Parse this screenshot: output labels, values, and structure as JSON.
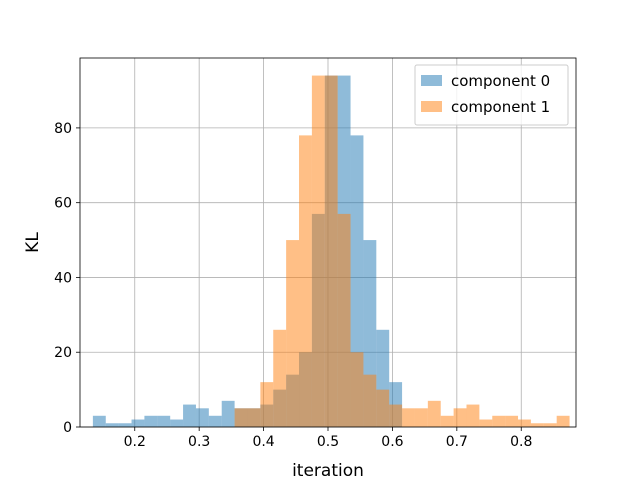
{
  "chart_data": {
    "type": "histogram",
    "xlabel": "iteration",
    "ylabel": "KL",
    "xlim": [
      0.115,
      0.885
    ],
    "ylim": [
      0,
      98.7
    ],
    "xticks": [
      0.2,
      0.3,
      0.4,
      0.5,
      0.6,
      0.7,
      0.8
    ],
    "yticks": [
      0,
      20,
      40,
      60,
      80
    ],
    "grid": true,
    "legend_position": "upper right",
    "alpha": 0.5,
    "series": [
      {
        "name": "component 0",
        "color": "#1f77b4",
        "bin_start": 0.135,
        "bin_width": 0.02,
        "counts": [
          3,
          1,
          1,
          2,
          3,
          3,
          2,
          6,
          5,
          3,
          7,
          5,
          5,
          6,
          10,
          14,
          20,
          57,
          94,
          94,
          78,
          50,
          26,
          12
        ]
      },
      {
        "name": "component 1",
        "color": "#ff7f0e",
        "bin_start": 0.355,
        "bin_width": 0.02,
        "counts": [
          5,
          5,
          12,
          26,
          50,
          78,
          94,
          94,
          57,
          20,
          14,
          10,
          6,
          5,
          5,
          7,
          3,
          5,
          6,
          2,
          3,
          3,
          2,
          1,
          1,
          3
        ]
      }
    ]
  }
}
